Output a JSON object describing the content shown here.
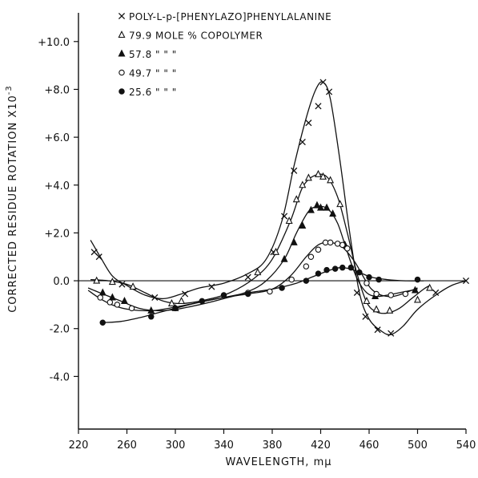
{
  "chart_data": {
    "type": "line",
    "xlabel": "WAVELENGTH, mμ",
    "ylabel": "CORRECTED RESIDUE ROTATION X10",
    "ylabel_exponent": "-3",
    "xlim": [
      220,
      540
    ],
    "ylim": [
      -6.2,
      11.2
    ],
    "x_ticks": [
      220,
      260,
      300,
      340,
      380,
      420,
      460,
      500,
      540
    ],
    "y_ticks": [
      10.0,
      8.0,
      6.0,
      4.0,
      2.0,
      0.0,
      -2.0,
      -4.0
    ],
    "y_tick_labels": [
      "+10.0",
      "+8.0",
      "+6.0",
      "+4.0",
      "+2.0",
      "0.0",
      "-2.0",
      "-4.0"
    ],
    "zero_line": true,
    "grid": false,
    "legend_position": "top",
    "legend": [
      {
        "marker": "x",
        "text": "POLY-L-p-[PHENYLAZO]PHENYLALANINE"
      },
      {
        "marker": "open-triangle",
        "text": "79.9 MOLE % COPOLYMER"
      },
      {
        "marker": "filled-triangle",
        "text": "57.8   \"   \"   \""
      },
      {
        "marker": "open-circle",
        "text": "49.7   \"   \"   \""
      },
      {
        "marker": "filled-circle",
        "text": "25.6   \"   \"   \""
      }
    ],
    "series": [
      {
        "marker": "x",
        "curve": [
          [
            230,
            1.7
          ],
          [
            238,
            1.0
          ],
          [
            248,
            0.2
          ],
          [
            260,
            -0.2
          ],
          [
            275,
            -0.6
          ],
          [
            290,
            -0.75
          ],
          [
            305,
            -0.55
          ],
          [
            320,
            -0.3
          ],
          [
            340,
            -0.1
          ],
          [
            360,
            0.3
          ],
          [
            375,
            0.9
          ],
          [
            388,
            2.5
          ],
          [
            398,
            4.8
          ],
          [
            408,
            6.8
          ],
          [
            416,
            8.0
          ],
          [
            422,
            8.3
          ],
          [
            428,
            7.6
          ],
          [
            436,
            5.0
          ],
          [
            444,
            2.0
          ],
          [
            452,
            -0.5
          ],
          [
            460,
            -1.6
          ],
          [
            470,
            -2.1
          ],
          [
            478,
            -2.25
          ],
          [
            488,
            -1.9
          ],
          [
            500,
            -1.2
          ],
          [
            515,
            -0.6
          ],
          [
            528,
            -0.2
          ],
          [
            540,
            0.0
          ]
        ],
        "points": [
          [
            233,
            1.2
          ],
          [
            237,
            1.0
          ],
          [
            256,
            -0.15
          ],
          [
            283,
            -0.7
          ],
          [
            308,
            -0.55
          ],
          [
            330,
            -0.25
          ],
          [
            360,
            0.15
          ],
          [
            381,
            1.2
          ],
          [
            390,
            2.7
          ],
          [
            398,
            4.6
          ],
          [
            405,
            5.8
          ],
          [
            410,
            6.6
          ],
          [
            418,
            7.3
          ],
          [
            422,
            8.3
          ],
          [
            427,
            7.9
          ],
          [
            450,
            -0.5
          ],
          [
            457,
            -1.5
          ],
          [
            467,
            -2.05
          ],
          [
            478,
            -2.2
          ],
          [
            515,
            -0.5
          ],
          [
            540,
            0.0
          ]
        ]
      },
      {
        "marker": "open-triangle",
        "curve": [
          [
            230,
            0.05
          ],
          [
            245,
            0.0
          ],
          [
            260,
            -0.15
          ],
          [
            275,
            -0.5
          ],
          [
            290,
            -0.85
          ],
          [
            305,
            -0.95
          ],
          [
            325,
            -0.8
          ],
          [
            345,
            -0.5
          ],
          [
            365,
            0.1
          ],
          [
            380,
            0.9
          ],
          [
            395,
            2.5
          ],
          [
            405,
            3.9
          ],
          [
            415,
            4.4
          ],
          [
            425,
            4.35
          ],
          [
            434,
            3.5
          ],
          [
            442,
            2.0
          ],
          [
            450,
            0.3
          ],
          [
            458,
            -0.9
          ],
          [
            466,
            -1.3
          ],
          [
            475,
            -1.35
          ],
          [
            485,
            -1.15
          ],
          [
            495,
            -0.75
          ],
          [
            505,
            -0.35
          ],
          [
            510,
            -0.2
          ]
        ],
        "points": [
          [
            235,
            0.0
          ],
          [
            248,
            -0.05
          ],
          [
            265,
            -0.25
          ],
          [
            297,
            -0.95
          ],
          [
            305,
            -0.85
          ],
          [
            368,
            0.35
          ],
          [
            383,
            1.2
          ],
          [
            394,
            2.5
          ],
          [
            400,
            3.4
          ],
          [
            405,
            4.0
          ],
          [
            410,
            4.3
          ],
          [
            418,
            4.45
          ],
          [
            422,
            4.35
          ],
          [
            428,
            4.2
          ],
          [
            436,
            3.2
          ],
          [
            458,
            -0.85
          ],
          [
            466,
            -1.2
          ],
          [
            477,
            -1.25
          ],
          [
            500,
            -0.8
          ],
          [
            510,
            -0.3
          ]
        ]
      },
      {
        "marker": "filled-triangle",
        "curve": [
          [
            228,
            -0.3
          ],
          [
            240,
            -0.55
          ],
          [
            255,
            -0.85
          ],
          [
            270,
            -1.15
          ],
          [
            285,
            -1.25
          ],
          [
            300,
            -1.2
          ],
          [
            320,
            -1.0
          ],
          [
            340,
            -0.75
          ],
          [
            360,
            -0.45
          ],
          [
            375,
            0.0
          ],
          [
            390,
            0.9
          ],
          [
            400,
            2.0
          ],
          [
            410,
            2.9
          ],
          [
            418,
            3.1
          ],
          [
            426,
            3.0
          ],
          [
            434,
            2.4
          ],
          [
            442,
            1.2
          ],
          [
            450,
            0.1
          ],
          [
            458,
            -0.5
          ],
          [
            466,
            -0.65
          ],
          [
            475,
            -0.6
          ],
          [
            490,
            -0.45
          ],
          [
            500,
            -0.35
          ]
        ],
        "points": [
          [
            240,
            -0.5
          ],
          [
            248,
            -0.7
          ],
          [
            258,
            -0.85
          ],
          [
            280,
            -1.25
          ],
          [
            300,
            -1.15
          ],
          [
            390,
            0.9
          ],
          [
            398,
            1.6
          ],
          [
            405,
            2.3
          ],
          [
            412,
            2.95
          ],
          [
            417,
            3.15
          ],
          [
            420,
            3.05
          ],
          [
            425,
            3.05
          ],
          [
            430,
            2.8
          ],
          [
            440,
            1.5
          ],
          [
            465,
            -0.65
          ],
          [
            498,
            -0.4
          ]
        ]
      },
      {
        "marker": "open-circle",
        "curve": [
          [
            228,
            -0.4
          ],
          [
            238,
            -0.75
          ],
          [
            250,
            -1.05
          ],
          [
            262,
            -1.2
          ],
          [
            280,
            -1.25
          ],
          [
            300,
            -1.1
          ],
          [
            320,
            -0.9
          ],
          [
            340,
            -0.7
          ],
          [
            360,
            -0.55
          ],
          [
            380,
            -0.35
          ],
          [
            395,
            0.2
          ],
          [
            408,
            1.0
          ],
          [
            418,
            1.5
          ],
          [
            428,
            1.6
          ],
          [
            438,
            1.4
          ],
          [
            448,
            0.8
          ],
          [
            456,
            0.1
          ],
          [
            462,
            -0.35
          ],
          [
            470,
            -0.6
          ],
          [
            480,
            -0.65
          ],
          [
            490,
            -0.5
          ],
          [
            500,
            -0.3
          ]
        ],
        "points": [
          [
            238,
            -0.7
          ],
          [
            246,
            -0.9
          ],
          [
            252,
            -1.0
          ],
          [
            264,
            -1.15
          ],
          [
            360,
            -0.5
          ],
          [
            378,
            -0.45
          ],
          [
            396,
            0.05
          ],
          [
            408,
            0.6
          ],
          [
            412,
            1.0
          ],
          [
            418,
            1.3
          ],
          [
            424,
            1.6
          ],
          [
            428,
            1.6
          ],
          [
            434,
            1.55
          ],
          [
            438,
            1.5
          ],
          [
            442,
            1.35
          ],
          [
            458,
            -0.1
          ],
          [
            466,
            -0.55
          ],
          [
            478,
            -0.6
          ],
          [
            490,
            -0.55
          ]
        ]
      },
      {
        "marker": "filled-circle",
        "curve": [
          [
            240,
            -1.75
          ],
          [
            255,
            -1.7
          ],
          [
            270,
            -1.55
          ],
          [
            285,
            -1.35
          ],
          [
            300,
            -1.15
          ],
          [
            320,
            -0.9
          ],
          [
            340,
            -0.7
          ],
          [
            360,
            -0.5
          ],
          [
            380,
            -0.35
          ],
          [
            400,
            -0.1
          ],
          [
            415,
            0.2
          ],
          [
            428,
            0.45
          ],
          [
            436,
            0.55
          ],
          [
            444,
            0.5
          ],
          [
            452,
            0.35
          ],
          [
            462,
            0.15
          ],
          [
            475,
            0.05
          ],
          [
            490,
            0.0
          ],
          [
            505,
            0.0
          ]
        ],
        "points": [
          [
            240,
            -1.75
          ],
          [
            280,
            -1.5
          ],
          [
            300,
            -1.15
          ],
          [
            322,
            -0.85
          ],
          [
            340,
            -0.6
          ],
          [
            360,
            -0.55
          ],
          [
            388,
            -0.3
          ],
          [
            408,
            0.0
          ],
          [
            418,
            0.3
          ],
          [
            425,
            0.45
          ],
          [
            432,
            0.5
          ],
          [
            438,
            0.55
          ],
          [
            445,
            0.55
          ],
          [
            452,
            0.35
          ],
          [
            460,
            0.15
          ],
          [
            468,
            0.05
          ],
          [
            500,
            0.05
          ]
        ]
      }
    ]
  }
}
